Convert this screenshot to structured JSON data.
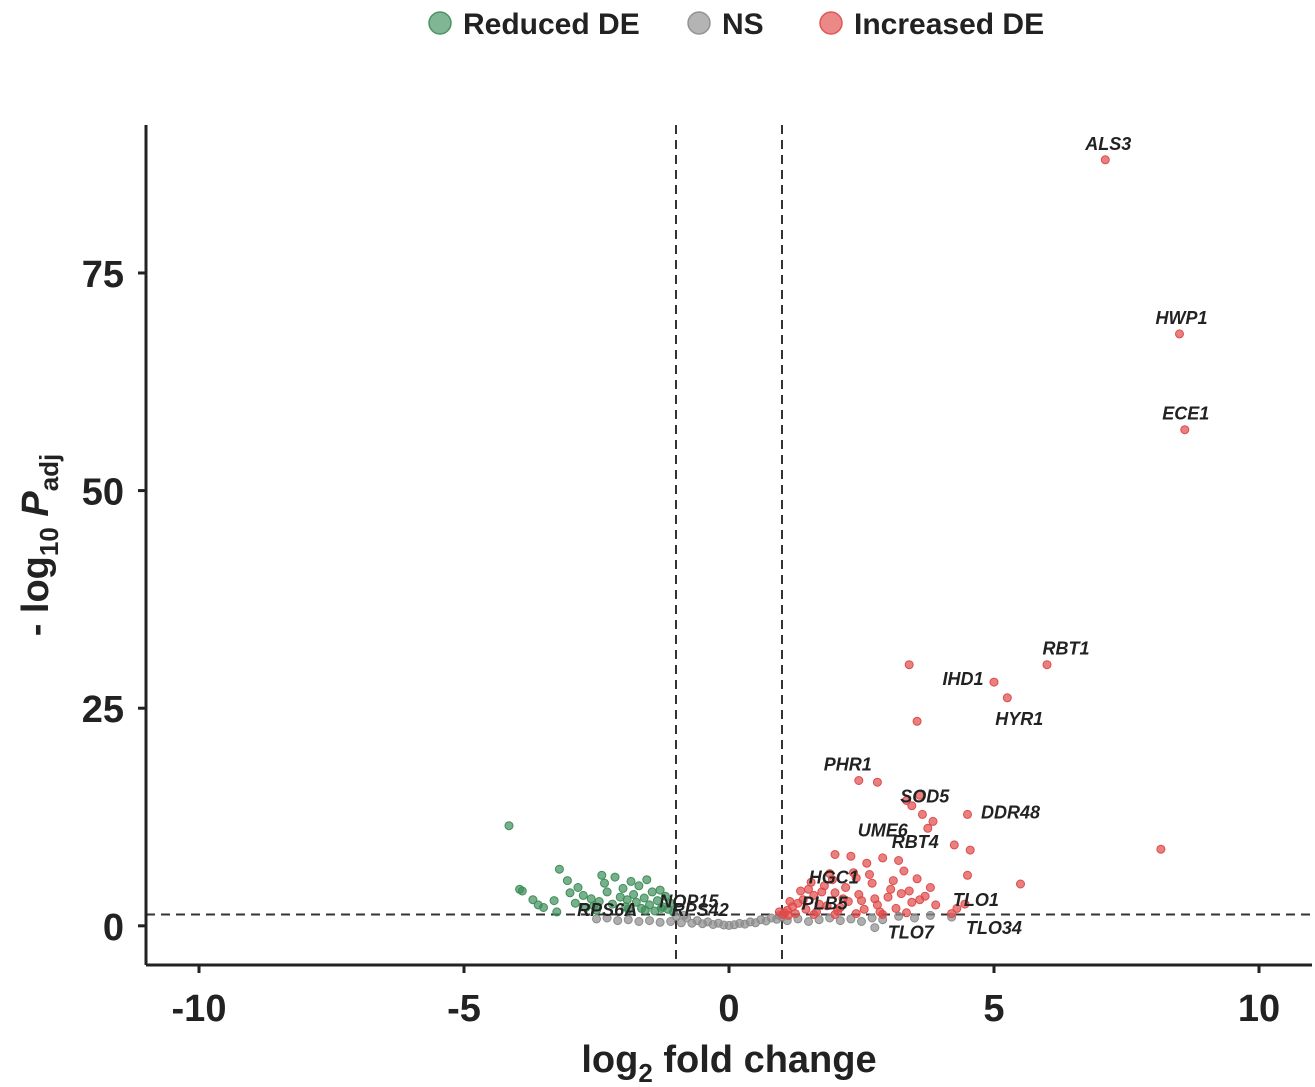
{
  "chart_data": {
    "type": "scatter",
    "title": "",
    "xlabel": {
      "base": "log",
      "sub": "2",
      "rest": " fold change"
    },
    "ylabel": {
      "prefix": "- log",
      "sub1": "10",
      "var": " P",
      "sub2": "adj"
    },
    "xlim": [
      -11,
      11
    ],
    "ylim": [
      -4.5,
      92
    ],
    "x_ticks": [
      -10,
      -5,
      0,
      5,
      10
    ],
    "x_tick_labels": [
      "-10",
      "-5",
      "0",
      "5",
      "10"
    ],
    "y_ticks": [
      0,
      25,
      50,
      75
    ],
    "y_tick_labels": [
      "0",
      "25",
      "50",
      "75"
    ],
    "grid": false,
    "legend_position": "top",
    "thresholds": {
      "fold_change": [
        -1,
        1
      ],
      "p_adj_line": 1.3
    },
    "colors": {
      "reduced": "#3e8e5a",
      "ns": "#8c8c8c",
      "increased": "#e04a4a",
      "axis": "#222222"
    },
    "series": [
      {
        "name": "Reduced DE",
        "color": "#3e8e5a",
        "points": [
          [
            -4.15,
            11.5
          ],
          [
            -3.95,
            4.2
          ],
          [
            -3.9,
            4.0
          ],
          [
            -3.7,
            3.0
          ],
          [
            -3.6,
            2.4
          ],
          [
            -3.5,
            2.1
          ],
          [
            -3.3,
            2.9
          ],
          [
            -3.25,
            1.6
          ],
          [
            -3.2,
            6.5
          ],
          [
            -3.05,
            5.2
          ],
          [
            -3.0,
            3.8
          ],
          [
            -2.9,
            2.6
          ],
          [
            -2.85,
            4.4
          ],
          [
            -2.7,
            2.1
          ],
          [
            -2.6,
            3.1
          ],
          [
            -2.5,
            1.8
          ],
          [
            -2.45,
            2.8
          ],
          [
            -2.4,
            5.8
          ],
          [
            -2.35,
            4.9
          ],
          [
            -2.3,
            3.9
          ],
          [
            -2.2,
            2.5
          ],
          [
            -2.15,
            5.6
          ],
          [
            -2.05,
            3.3
          ],
          [
            -2.0,
            4.3
          ],
          [
            -1.95,
            2.2
          ],
          [
            -1.9,
            1.9
          ],
          [
            -1.85,
            5.1
          ],
          [
            -1.8,
            3.6
          ],
          [
            -1.75,
            2.7
          ],
          [
            -1.7,
            4.6
          ],
          [
            -1.65,
            2.0
          ],
          [
            -1.6,
            3.2
          ],
          [
            -1.55,
            5.3
          ],
          [
            -1.5,
            2.4
          ],
          [
            -1.45,
            3.9
          ],
          [
            -1.4,
            1.7
          ],
          [
            -1.35,
            2.9
          ],
          [
            -1.3,
            4.1
          ],
          [
            -1.25,
            2.2
          ],
          [
            -1.2,
            3.4
          ],
          [
            -1.15,
            1.9
          ],
          [
            -1.1,
            2.6
          ],
          [
            -1.05,
            1.6
          ],
          [
            -2.75,
            3.5
          ],
          [
            -2.55,
            2.3
          ],
          [
            -1.92,
            3.0
          ],
          [
            -1.58,
            1.8
          ],
          [
            -1.28,
            2.0
          ]
        ]
      },
      {
        "name": "NS",
        "color": "#8c8c8c",
        "points": [
          [
            -2.5,
            0.8
          ],
          [
            -2.3,
            0.9
          ],
          [
            -2.1,
            0.6
          ],
          [
            -1.9,
            0.7
          ],
          [
            -1.7,
            0.5
          ],
          [
            -1.5,
            0.6
          ],
          [
            -1.3,
            0.4
          ],
          [
            -1.1,
            0.5
          ],
          [
            -0.9,
            0.35
          ],
          [
            -0.8,
            0.9
          ],
          [
            -0.7,
            0.3
          ],
          [
            -0.6,
            0.6
          ],
          [
            -0.5,
            0.25
          ],
          [
            -0.4,
            0.45
          ],
          [
            -0.3,
            0.15
          ],
          [
            -0.2,
            0.3
          ],
          [
            -0.1,
            0.1
          ],
          [
            0.0,
            0.05
          ],
          [
            0.1,
            0.12
          ],
          [
            0.2,
            0.28
          ],
          [
            0.3,
            0.2
          ],
          [
            0.4,
            0.45
          ],
          [
            0.5,
            0.35
          ],
          [
            0.6,
            0.7
          ],
          [
            0.7,
            0.55
          ],
          [
            0.8,
            0.9
          ],
          [
            0.9,
            0.75
          ],
          [
            1.1,
            0.6
          ],
          [
            1.3,
            0.8
          ],
          [
            1.5,
            0.5
          ],
          [
            1.7,
            0.7
          ],
          [
            1.9,
            0.9
          ],
          [
            2.1,
            0.6
          ],
          [
            2.3,
            0.8
          ],
          [
            2.5,
            0.5
          ],
          [
            2.7,
            0.9
          ],
          [
            2.75,
            -0.2
          ],
          [
            2.9,
            0.7
          ],
          [
            3.2,
            1.1
          ],
          [
            3.5,
            0.9
          ],
          [
            3.8,
            1.2
          ],
          [
            4.2,
            1.0
          ],
          [
            -1.0,
            1.1
          ],
          [
            1.0,
            1.0
          ],
          [
            -0.85,
            1.2
          ],
          [
            0.95,
            1.2
          ]
        ]
      },
      {
        "name": "Increased DE",
        "color": "#e04a4a",
        "points": [
          [
            7.1,
            88
          ],
          [
            8.5,
            68
          ],
          [
            8.6,
            57
          ],
          [
            6.0,
            30
          ],
          [
            5.0,
            28
          ],
          [
            5.25,
            26.2
          ],
          [
            3.4,
            30
          ],
          [
            3.55,
            23.5
          ],
          [
            8.15,
            8.8
          ],
          [
            2.45,
            16.7
          ],
          [
            2.8,
            16.5
          ],
          [
            3.35,
            14.4
          ],
          [
            3.45,
            13.8
          ],
          [
            3.6,
            15.0
          ],
          [
            3.65,
            12.8
          ],
          [
            3.75,
            11.2
          ],
          [
            3.85,
            12.0
          ],
          [
            4.5,
            12.8
          ],
          [
            4.25,
            9.3
          ],
          [
            4.55,
            8.7
          ],
          [
            5.5,
            4.8
          ],
          [
            4.5,
            5.8
          ],
          [
            4.45,
            2.5
          ],
          [
            4.3,
            2.0
          ],
          [
            4.2,
            1.4
          ],
          [
            3.9,
            2.4
          ],
          [
            3.7,
            3.4
          ],
          [
            2.0,
            8.2
          ],
          [
            2.3,
            8.0
          ],
          [
            1.9,
            6.0
          ],
          [
            2.6,
            7.2
          ],
          [
            2.9,
            7.8
          ],
          [
            3.2,
            7.5
          ],
          [
            3.3,
            6.3
          ],
          [
            3.1,
            5.2
          ],
          [
            2.7,
            4.9
          ],
          [
            2.4,
            5.5
          ],
          [
            2.2,
            4.4
          ],
          [
            2.0,
            3.8
          ],
          [
            1.8,
            4.6
          ],
          [
            1.6,
            3.5
          ],
          [
            1.4,
            3.0
          ],
          [
            1.3,
            2.6
          ],
          [
            1.2,
            2.2
          ],
          [
            1.1,
            1.8
          ],
          [
            1.05,
            1.5
          ],
          [
            1.5,
            4.2
          ],
          [
            1.7,
            2.5
          ],
          [
            2.1,
            2.1
          ],
          [
            2.5,
            2.9
          ],
          [
            2.8,
            2.4
          ],
          [
            3.0,
            3.3
          ],
          [
            3.4,
            4.0
          ],
          [
            3.6,
            3.0
          ],
          [
            1.25,
            1.4
          ],
          [
            1.45,
            1.9
          ],
          [
            1.65,
            1.6
          ],
          [
            1.85,
            2.3
          ],
          [
            2.05,
            1.7
          ],
          [
            2.25,
            2.8
          ],
          [
            2.55,
            1.9
          ],
          [
            2.85,
            1.6
          ],
          [
            3.15,
            2.0
          ],
          [
            3.45,
            2.7
          ],
          [
            1.35,
            4.0
          ],
          [
            1.55,
            5.0
          ],
          [
            1.95,
            5.3
          ],
          [
            2.35,
            6.1
          ],
          [
            2.65,
            5.9
          ],
          [
            3.05,
            4.2
          ],
          [
            3.25,
            3.7
          ],
          [
            1.15,
            2.8
          ],
          [
            1.75,
            3.9
          ],
          [
            2.15,
            3.1
          ],
          [
            2.45,
            3.6
          ],
          [
            2.75,
            3.1
          ],
          [
            3.55,
            5.4
          ],
          [
            3.8,
            4.4
          ],
          [
            0.95,
            1.6
          ],
          [
            1.02,
            1.3
          ],
          [
            1.12,
            1.2
          ],
          [
            1.6,
            1.3
          ],
          [
            2.0,
            1.3
          ],
          [
            2.4,
            1.4
          ],
          [
            2.9,
            1.3
          ],
          [
            3.35,
            1.5
          ]
        ]
      }
    ],
    "annotations": [
      {
        "text": "ALS3",
        "x": 7.1,
        "y": 88
      },
      {
        "text": "HWP1",
        "x": 8.5,
        "y": 68
      },
      {
        "text": "ECE1",
        "x": 8.6,
        "y": 57
      },
      {
        "text": "RBT1",
        "x": 6.0,
        "y": 30
      },
      {
        "text": "IHD1",
        "x": 5.0,
        "y": 28
      },
      {
        "text": "HYR1",
        "x": 5.25,
        "y": 26.2
      },
      {
        "text": "PHR1",
        "x": 2.45,
        "y": 16.7
      },
      {
        "text": "SOD5",
        "x": 3.6,
        "y": 15.0
      },
      {
        "text": "UME6",
        "x": 3.75,
        "y": 11.2
      },
      {
        "text": "DDR48",
        "x": 4.5,
        "y": 12.8
      },
      {
        "text": "RBT4",
        "x": 4.25,
        "y": 9.3
      },
      {
        "text": "HGC1",
        "x": 2.6,
        "y": 5.0
      },
      {
        "text": "TLO1",
        "x": 4.45,
        "y": 2.5
      },
      {
        "text": "TLO7",
        "x": 2.75,
        "y": -0.2
      },
      {
        "text": "TLO34",
        "x": 4.3,
        "y": 0.2
      },
      {
        "text": "PLB5",
        "x": 1.2,
        "y": 1.2
      },
      {
        "text": "NOP15",
        "x": -1.7,
        "y": 2.8
      },
      {
        "text": "RPS6A",
        "x": -2.6,
        "y": 1.8
      },
      {
        "text": "RPS42",
        "x": -1.6,
        "y": 1.8
      }
    ]
  }
}
